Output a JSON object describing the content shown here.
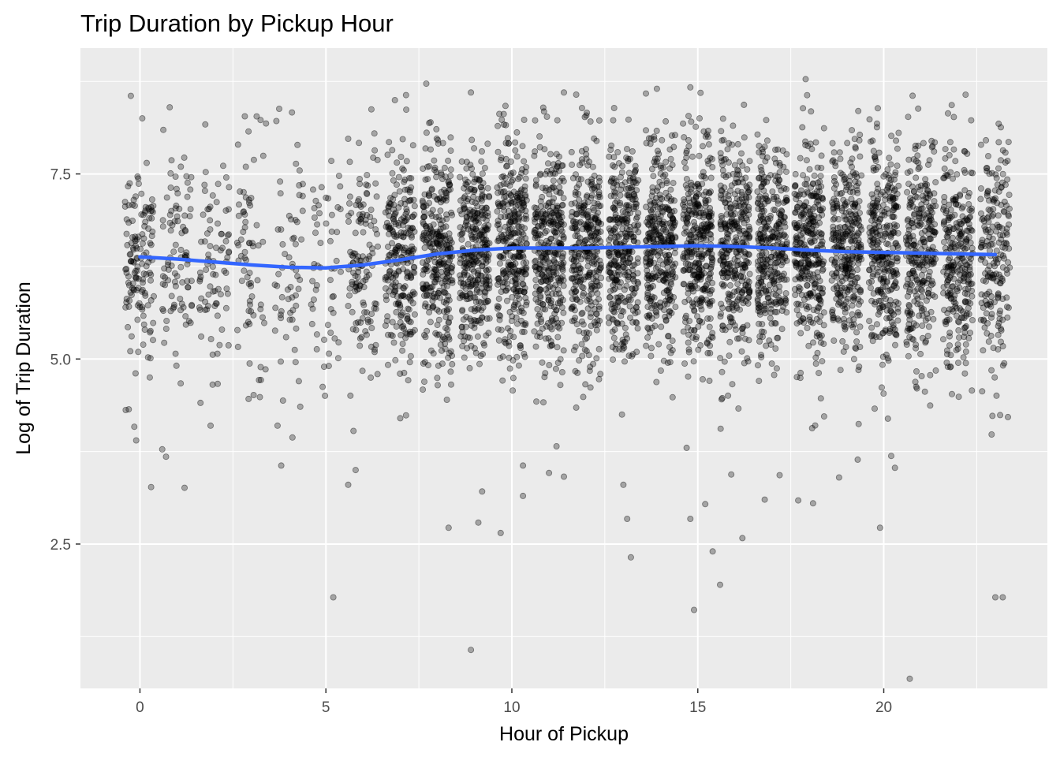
{
  "chart_data": {
    "type": "scatter",
    "title": "Trip Duration by Pickup Hour",
    "xlabel": "Hour of Pickup",
    "ylabel": "Log of Trip Duration",
    "xlim": [
      -1.6,
      24.4
    ],
    "ylim": [
      0.55,
      9.2
    ],
    "x_ticks": [
      0,
      5,
      10,
      15,
      20
    ],
    "x_tick_labels": [
      "0",
      "5",
      "10",
      "15",
      "20"
    ],
    "y_ticks": [
      2.5,
      5.0,
      7.5
    ],
    "y_tick_labels": [
      "2.5",
      "5.0",
      "7.5"
    ],
    "grid": true,
    "legend": "none",
    "point_color": "#000000",
    "point_opacity": 0.3,
    "smooth_color": "#3366FF",
    "jitter_width": 0.4,
    "hours": [
      0,
      1,
      2,
      3,
      4,
      5,
      6,
      7,
      8,
      9,
      10,
      11,
      12,
      13,
      14,
      15,
      16,
      17,
      18,
      19,
      20,
      21,
      22,
      23
    ],
    "points_per_hour": [
      140,
      90,
      80,
      70,
      60,
      55,
      130,
      250,
      320,
      330,
      340,
      340,
      330,
      330,
      340,
      350,
      340,
      330,
      330,
      320,
      310,
      290,
      280,
      200
    ],
    "spread_per_hour": [
      0.75,
      0.78,
      0.8,
      0.82,
      0.82,
      0.82,
      0.78,
      0.74,
      0.72,
      0.72,
      0.72,
      0.72,
      0.72,
      0.72,
      0.72,
      0.72,
      0.72,
      0.72,
      0.72,
      0.72,
      0.72,
      0.72,
      0.74,
      0.74
    ],
    "smooth_curve": {
      "x": [
        0,
        1,
        2,
        3,
        4,
        5,
        6,
        7,
        8,
        9,
        10,
        11,
        12,
        13,
        14,
        15,
        16,
        17,
        18,
        19,
        20,
        21,
        22,
        23
      ],
      "y": [
        6.38,
        6.35,
        6.31,
        6.27,
        6.24,
        6.23,
        6.27,
        6.34,
        6.42,
        6.47,
        6.5,
        6.5,
        6.5,
        6.51,
        6.52,
        6.53,
        6.52,
        6.5,
        6.47,
        6.45,
        6.44,
        6.43,
        6.42,
        6.41
      ]
    },
    "outliers": [
      {
        "x": 0.6,
        "y": 3.78
      },
      {
        "x": 0.7,
        "y": 3.68
      },
      {
        "x": 0.3,
        "y": 3.27
      },
      {
        "x": 1.2,
        "y": 3.26
      },
      {
        "x": -0.1,
        "y": 3.9
      },
      {
        "x": -0.3,
        "y": 4.32
      },
      {
        "x": 1.9,
        "y": 4.1
      },
      {
        "x": 3.7,
        "y": 4.1
      },
      {
        "x": 3.8,
        "y": 3.56
      },
      {
        "x": 4.1,
        "y": 3.94
      },
      {
        "x": 5.2,
        "y": 1.78
      },
      {
        "x": 5.6,
        "y": 3.3
      },
      {
        "x": 5.8,
        "y": 3.5
      },
      {
        "x": 7.0,
        "y": 4.2
      },
      {
        "x": 8.3,
        "y": 2.72
      },
      {
        "x": 8.9,
        "y": 1.07
      },
      {
        "x": 9.1,
        "y": 2.79
      },
      {
        "x": 9.2,
        "y": 3.21
      },
      {
        "x": 9.7,
        "y": 2.65
      },
      {
        "x": 10.3,
        "y": 3.56
      },
      {
        "x": 10.3,
        "y": 3.15
      },
      {
        "x": 11.0,
        "y": 3.46
      },
      {
        "x": 11.2,
        "y": 3.82
      },
      {
        "x": 11.4,
        "y": 3.41
      },
      {
        "x": 13.0,
        "y": 3.3
      },
      {
        "x": 13.1,
        "y": 2.84
      },
      {
        "x": 13.2,
        "y": 2.32
      },
      {
        "x": 14.8,
        "y": 2.84
      },
      {
        "x": 14.9,
        "y": 1.61
      },
      {
        "x": 14.7,
        "y": 3.8
      },
      {
        "x": 15.2,
        "y": 3.04
      },
      {
        "x": 15.4,
        "y": 2.4
      },
      {
        "x": 15.6,
        "y": 1.95
      },
      {
        "x": 15.9,
        "y": 3.44
      },
      {
        "x": 16.2,
        "y": 2.58
      },
      {
        "x": 16.8,
        "y": 3.1
      },
      {
        "x": 17.2,
        "y": 3.43
      },
      {
        "x": 17.7,
        "y": 3.09
      },
      {
        "x": 18.1,
        "y": 3.05
      },
      {
        "x": 18.8,
        "y": 3.4
      },
      {
        "x": 19.3,
        "y": 3.64
      },
      {
        "x": 19.9,
        "y": 2.72
      },
      {
        "x": 20.2,
        "y": 3.69
      },
      {
        "x": 20.3,
        "y": 3.53
      },
      {
        "x": 20.7,
        "y": 0.68
      },
      {
        "x": 23.0,
        "y": 1.78
      },
      {
        "x": 23.2,
        "y": 1.78
      },
      {
        "x": 22.9,
        "y": 3.98
      },
      {
        "x": 0.8,
        "y": 8.4
      },
      {
        "x": 17.9,
        "y": 8.78
      },
      {
        "x": 7.7,
        "y": 8.72
      },
      {
        "x": 14.8,
        "y": 8.67
      },
      {
        "x": 8.9,
        "y": 8.6
      },
      {
        "x": 22.2,
        "y": 8.57
      },
      {
        "x": 11.4,
        "y": 8.6
      },
      {
        "x": 13.9,
        "y": 8.65
      }
    ]
  }
}
